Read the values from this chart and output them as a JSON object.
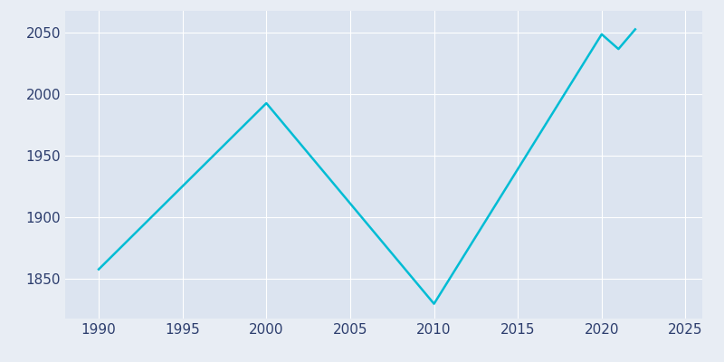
{
  "years": [
    1990,
    2000,
    2010,
    2020,
    2021,
    2022
  ],
  "population": [
    1858,
    1993,
    1830,
    2049,
    2037,
    2053
  ],
  "line_color": "#00BCD4",
  "bg_color": "#e8edf4",
  "plot_bg_color": "#dce4f0",
  "grid_color": "#ffffff",
  "xlabel": "",
  "ylabel": "",
  "xlim": [
    1988,
    2026
  ],
  "ylim": [
    1818,
    2068
  ],
  "xticks": [
    1990,
    1995,
    2000,
    2005,
    2010,
    2015,
    2020,
    2025
  ],
  "yticks": [
    1850,
    1900,
    1950,
    2000,
    2050
  ],
  "line_width": 1.8,
  "tick_label_color": "#2d3e6e",
  "tick_fontsize": 11,
  "figsize": [
    8.0,
    4.0
  ],
  "dpi": 100
}
